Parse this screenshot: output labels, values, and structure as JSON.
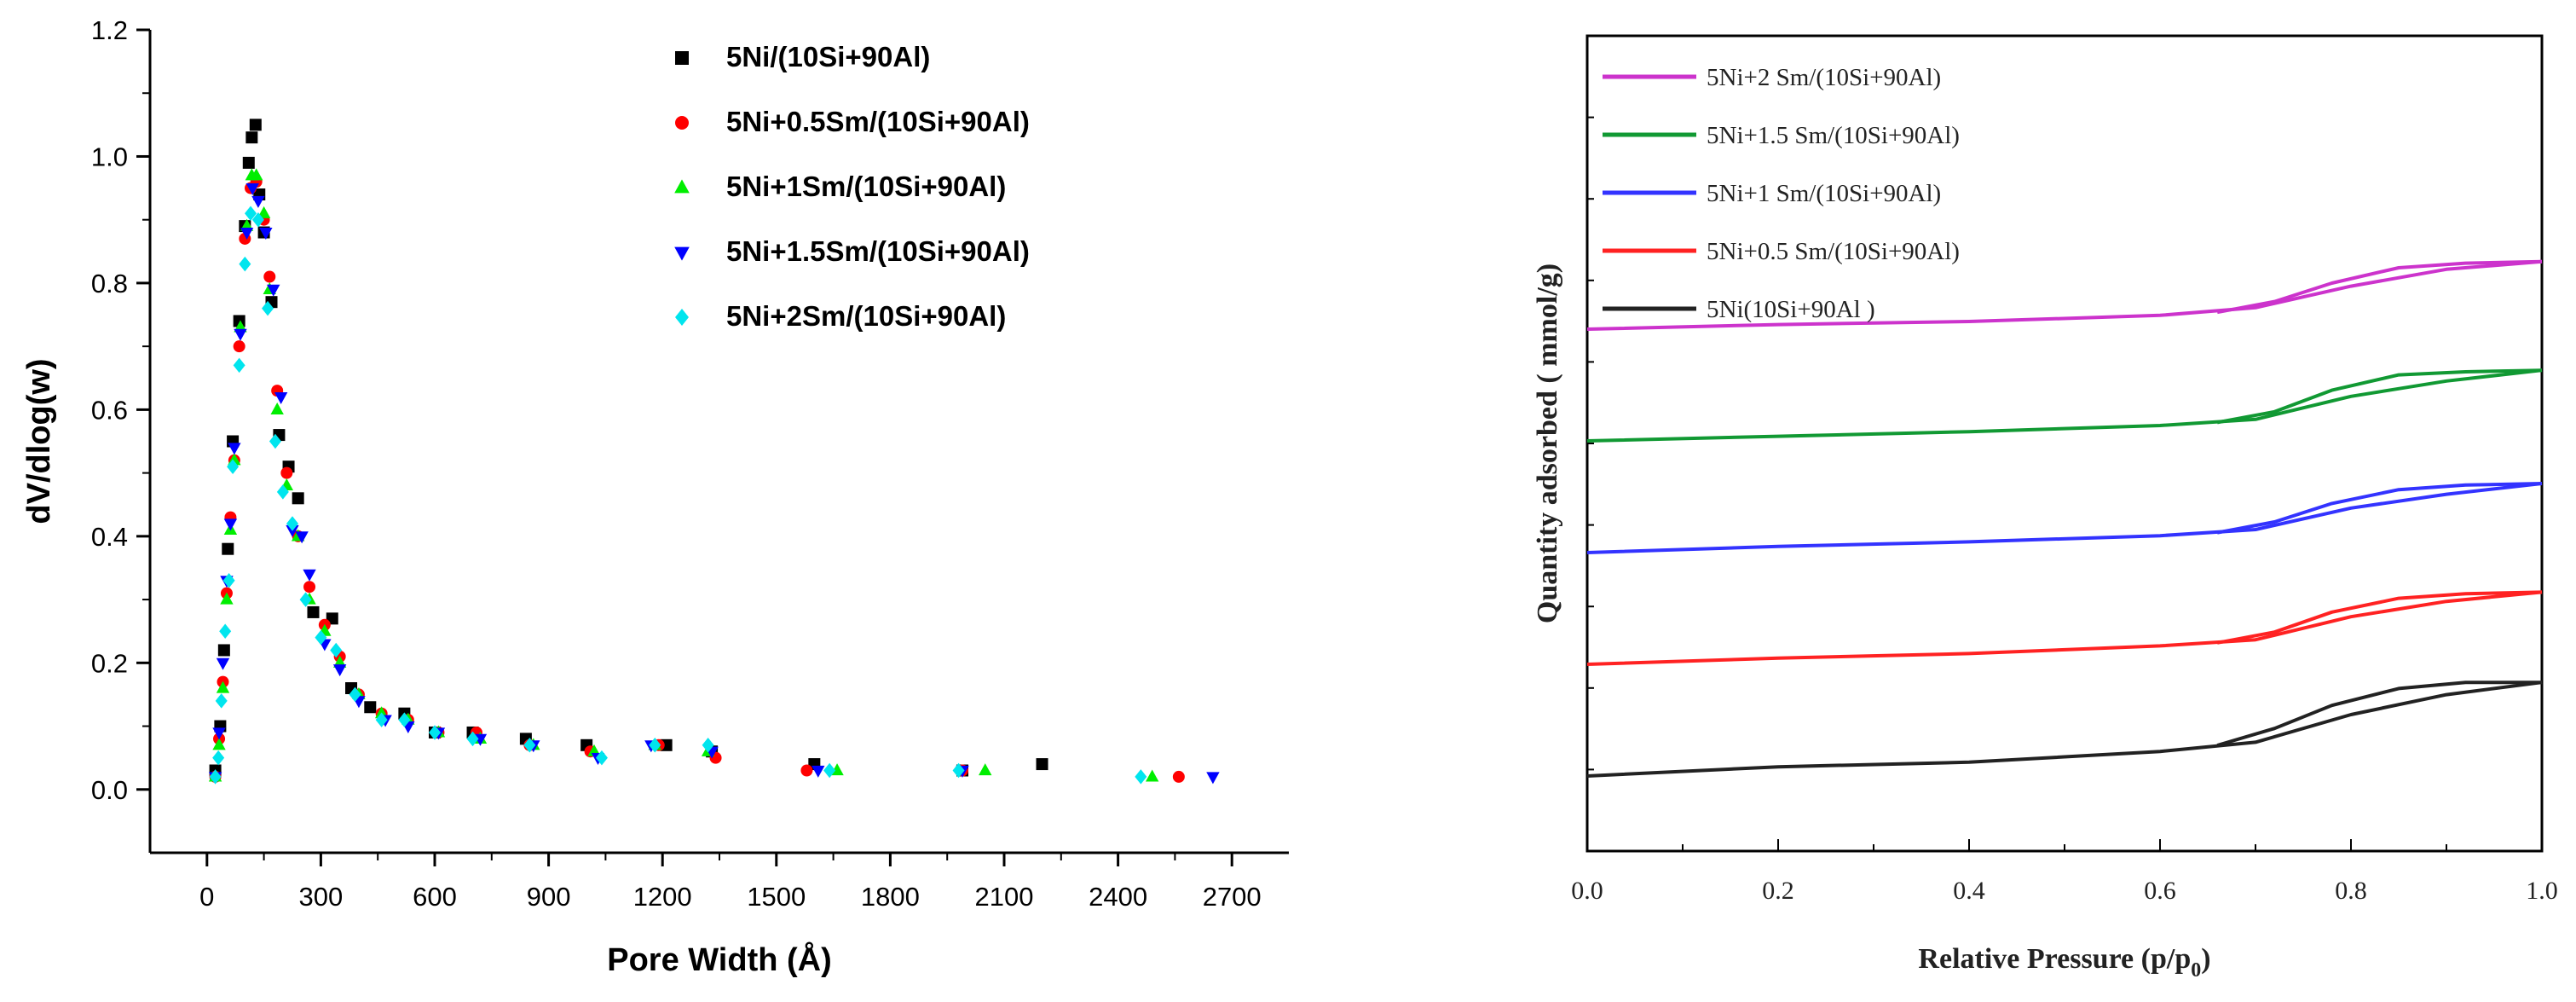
{
  "chart_data": [
    {
      "type": "scatter",
      "title": "",
      "xlabel": "Pore Width (Å)",
      "ylabel": "dV/dlog(w)",
      "xlim": [
        -150,
        2850
      ],
      "ylim": [
        -0.1,
        1.2
      ],
      "x_ticks": [
        "0",
        "300",
        "600",
        "900",
        "1200",
        "1500",
        "1800",
        "2100",
        "2400",
        "2700"
      ],
      "y_ticks": [
        "0.0",
        "0.2",
        "0.4",
        "0.6",
        "0.8",
        "1.0",
        "1.2"
      ],
      "legend_position": "top-right",
      "series": [
        {
          "name": "5Ni/(10Si+90Al)",
          "color": "#000000",
          "marker": "square",
          "points": [
            [
              22,
              0.03
            ],
            [
              35,
              0.1
            ],
            [
              45,
              0.22
            ],
            [
              55,
              0.38
            ],
            [
              68,
              0.55
            ],
            [
              85,
              0.74
            ],
            [
              100,
              0.89
            ],
            [
              110,
              0.99
            ],
            [
              118,
              1.03
            ],
            [
              128,
              1.05
            ],
            [
              138,
              0.94
            ],
            [
              150,
              0.88
            ],
            [
              170,
              0.77
            ],
            [
              190,
              0.56
            ],
            [
              215,
              0.51
            ],
            [
              240,
              0.46
            ],
            [
              280,
              0.28
            ],
            [
              330,
              0.27
            ],
            [
              380,
              0.16
            ],
            [
              430,
              0.13
            ],
            [
              520,
              0.12
            ],
            [
              600,
              0.09
            ],
            [
              700,
              0.09
            ],
            [
              840,
              0.08
            ],
            [
              1000,
              0.07
            ],
            [
              1210,
              0.07
            ],
            [
              1330,
              0.06
            ],
            [
              1600,
              0.04
            ],
            [
              1990,
              0.03
            ],
            [
              2200,
              0.04
            ]
          ]
        },
        {
          "name": "5Ni+0.5Sm/(10Si+90Al)",
          "color": "#ff0000",
          "marker": "circle",
          "points": [
            [
              22,
              0.02
            ],
            [
              32,
              0.08
            ],
            [
              42,
              0.17
            ],
            [
              52,
              0.31
            ],
            [
              62,
              0.43
            ],
            [
              72,
              0.52
            ],
            [
              85,
              0.7
            ],
            [
              100,
              0.87
            ],
            [
              115,
              0.95
            ],
            [
              130,
              0.96
            ],
            [
              150,
              0.9
            ],
            [
              165,
              0.81
            ],
            [
              185,
              0.63
            ],
            [
              210,
              0.5
            ],
            [
              240,
              0.4
            ],
            [
              270,
              0.32
            ],
            [
              310,
              0.26
            ],
            [
              350,
              0.21
            ],
            [
              400,
              0.15
            ],
            [
              460,
              0.12
            ],
            [
              530,
              0.11
            ],
            [
              610,
              0.09
            ],
            [
              710,
              0.09
            ],
            [
              850,
              0.07
            ],
            [
              1010,
              0.06
            ],
            [
              1190,
              0.07
            ],
            [
              1340,
              0.05
            ],
            [
              1580,
              0.03
            ],
            [
              1990,
              0.03
            ],
            [
              2560,
              0.02
            ]
          ]
        },
        {
          "name": "5Ni+1Sm/(10Si+90Al)",
          "color": "#00ee00",
          "marker": "triangle-up",
          "points": [
            [
              22,
              0.02
            ],
            [
              32,
              0.07
            ],
            [
              42,
              0.16
            ],
            [
              52,
              0.3
            ],
            [
              62,
              0.41
            ],
            [
              72,
              0.52
            ],
            [
              88,
              0.73
            ],
            [
              105,
              0.89
            ],
            [
              118,
              0.97
            ],
            [
              130,
              0.97
            ],
            [
              150,
              0.91
            ],
            [
              165,
              0.79
            ],
            [
              185,
              0.6
            ],
            [
              210,
              0.48
            ],
            [
              240,
              0.4
            ],
            [
              270,
              0.3
            ],
            [
              310,
              0.25
            ],
            [
              350,
              0.2
            ],
            [
              400,
              0.15
            ],
            [
              460,
              0.12
            ],
            [
              530,
              0.11
            ],
            [
              610,
              0.09
            ],
            [
              720,
              0.08
            ],
            [
              860,
              0.07
            ],
            [
              1020,
              0.06
            ],
            [
              1180,
              0.07
            ],
            [
              1320,
              0.06
            ],
            [
              1660,
              0.03
            ],
            [
              2050,
              0.03
            ],
            [
              2490,
              0.02
            ]
          ]
        },
        {
          "name": "5Ni+1.5Sm/(10Si+90Al)",
          "color": "#0000ff",
          "marker": "triangle-down",
          "points": [
            [
              22,
              0.02
            ],
            [
              32,
              0.09
            ],
            [
              42,
              0.2
            ],
            [
              52,
              0.33
            ],
            [
              62,
              0.42
            ],
            [
              72,
              0.54
            ],
            [
              88,
              0.72
            ],
            [
              105,
              0.88
            ],
            [
              120,
              0.95
            ],
            [
              135,
              0.93
            ],
            [
              155,
              0.88
            ],
            [
              175,
              0.79
            ],
            [
              195,
              0.62
            ],
            [
              225,
              0.41
            ],
            [
              250,
              0.4
            ],
            [
              270,
              0.34
            ],
            [
              310,
              0.23
            ],
            [
              350,
              0.19
            ],
            [
              400,
              0.14
            ],
            [
              470,
              0.11
            ],
            [
              530,
              0.1
            ],
            [
              610,
              0.09
            ],
            [
              720,
              0.08
            ],
            [
              860,
              0.07
            ],
            [
              1030,
              0.05
            ],
            [
              1170,
              0.07
            ],
            [
              1330,
              0.06
            ],
            [
              1610,
              0.03
            ],
            [
              1990,
              0.03
            ],
            [
              2650,
              0.02
            ]
          ]
        },
        {
          "name": "5Ni+2Sm/(10Si+90Al)",
          "color": "#00e5ee",
          "marker": "diamond",
          "points": [
            [
              22,
              0.02
            ],
            [
              30,
              0.05
            ],
            [
              38,
              0.14
            ],
            [
              48,
              0.25
            ],
            [
              58,
              0.33
            ],
            [
              68,
              0.51
            ],
            [
              85,
              0.67
            ],
            [
              100,
              0.83
            ],
            [
              115,
              0.91
            ],
            [
              135,
              0.9
            ],
            [
              160,
              0.76
            ],
            [
              180,
              0.55
            ],
            [
              200,
              0.47
            ],
            [
              225,
              0.42
            ],
            [
              260,
              0.3
            ],
            [
              300,
              0.24
            ],
            [
              340,
              0.22
            ],
            [
              390,
              0.15
            ],
            [
              460,
              0.11
            ],
            [
              520,
              0.11
            ],
            [
              600,
              0.09
            ],
            [
              700,
              0.08
            ],
            [
              850,
              0.07
            ],
            [
              1040,
              0.05
            ],
            [
              1180,
              0.07
            ],
            [
              1320,
              0.07
            ],
            [
              1640,
              0.03
            ],
            [
              1980,
              0.03
            ],
            [
              2460,
              0.02
            ]
          ]
        }
      ]
    },
    {
      "type": "line",
      "title": "",
      "xlabel": "Relative Pressure (p/p",
      "xlabel_sub": "0",
      "xlabel_end": ")",
      "ylabel": "Quantity adsorbed ( mmol/g)",
      "xlim": [
        0.0,
        1.0
      ],
      "x_ticks": [
        "0.0",
        "0.2",
        "0.4",
        "0.6",
        "0.8",
        "1.0"
      ],
      "y_ticks_labels": "none",
      "legend_position": "top-left",
      "series": [
        {
          "name": "5Ni+2 Sm/(10Si+90Al)",
          "color": "#cc33cc",
          "offset": 4,
          "adsorption": [
            [
              0.0,
              0.0
            ],
            [
              0.2,
              0.03
            ],
            [
              0.4,
              0.05
            ],
            [
              0.6,
              0.09
            ],
            [
              0.7,
              0.14
            ],
            [
              0.8,
              0.28
            ],
            [
              0.9,
              0.39
            ],
            [
              1.0,
              0.44
            ]
          ],
          "desorption": [
            [
              1.0,
              0.44
            ],
            [
              0.92,
              0.43
            ],
            [
              0.85,
              0.4
            ],
            [
              0.78,
              0.3
            ],
            [
              0.72,
              0.18
            ],
            [
              0.66,
              0.11
            ]
          ]
        },
        {
          "name": "5Ni+1.5 Sm/(10Si+90Al)",
          "color": "#119933",
          "offset": 3,
          "adsorption": [
            [
              0.0,
              0.0
            ],
            [
              0.2,
              0.03
            ],
            [
              0.4,
              0.06
            ],
            [
              0.6,
              0.1
            ],
            [
              0.7,
              0.14
            ],
            [
              0.8,
              0.29
            ],
            [
              0.9,
              0.39
            ],
            [
              1.0,
              0.46
            ]
          ],
          "desorption": [
            [
              1.0,
              0.46
            ],
            [
              0.92,
              0.45
            ],
            [
              0.85,
              0.43
            ],
            [
              0.78,
              0.33
            ],
            [
              0.72,
              0.19
            ],
            [
              0.66,
              0.12
            ]
          ]
        },
        {
          "name": "5Ni+1 Sm/(10Si+90Al)",
          "color": "#3333ff",
          "offset": 2,
          "adsorption": [
            [
              0.0,
              0.0
            ],
            [
              0.2,
              0.04
            ],
            [
              0.4,
              0.07
            ],
            [
              0.6,
              0.11
            ],
            [
              0.7,
              0.15
            ],
            [
              0.8,
              0.29
            ],
            [
              0.9,
              0.38
            ],
            [
              1.0,
              0.45
            ]
          ],
          "desorption": [
            [
              1.0,
              0.45
            ],
            [
              0.92,
              0.44
            ],
            [
              0.85,
              0.41
            ],
            [
              0.78,
              0.32
            ],
            [
              0.72,
              0.2
            ],
            [
              0.66,
              0.13
            ]
          ]
        },
        {
          "name": "5Ni+0.5 Sm/(10Si+90Al)",
          "color": "#ff2222",
          "offset": 1,
          "adsorption": [
            [
              0.0,
              0.0
            ],
            [
              0.2,
              0.04
            ],
            [
              0.4,
              0.07
            ],
            [
              0.6,
              0.12
            ],
            [
              0.7,
              0.16
            ],
            [
              0.8,
              0.31
            ],
            [
              0.9,
              0.41
            ],
            [
              1.0,
              0.47
            ]
          ],
          "desorption": [
            [
              1.0,
              0.47
            ],
            [
              0.92,
              0.46
            ],
            [
              0.85,
              0.43
            ],
            [
              0.78,
              0.34
            ],
            [
              0.72,
              0.21
            ],
            [
              0.66,
              0.14
            ]
          ]
        },
        {
          "name": "5Ni(10Si+90Al )",
          "color": "#222222",
          "offset": 0,
          "adsorption": [
            [
              0.0,
              0.0
            ],
            [
              0.2,
              0.06
            ],
            [
              0.4,
              0.09
            ],
            [
              0.6,
              0.16
            ],
            [
              0.7,
              0.22
            ],
            [
              0.8,
              0.4
            ],
            [
              0.9,
              0.53
            ],
            [
              1.0,
              0.61
            ]
          ],
          "desorption": [
            [
              1.0,
              0.61
            ],
            [
              0.92,
              0.61
            ],
            [
              0.85,
              0.57
            ],
            [
              0.78,
              0.46
            ],
            [
              0.72,
              0.31
            ],
            [
              0.66,
              0.2
            ]
          ]
        }
      ]
    }
  ]
}
